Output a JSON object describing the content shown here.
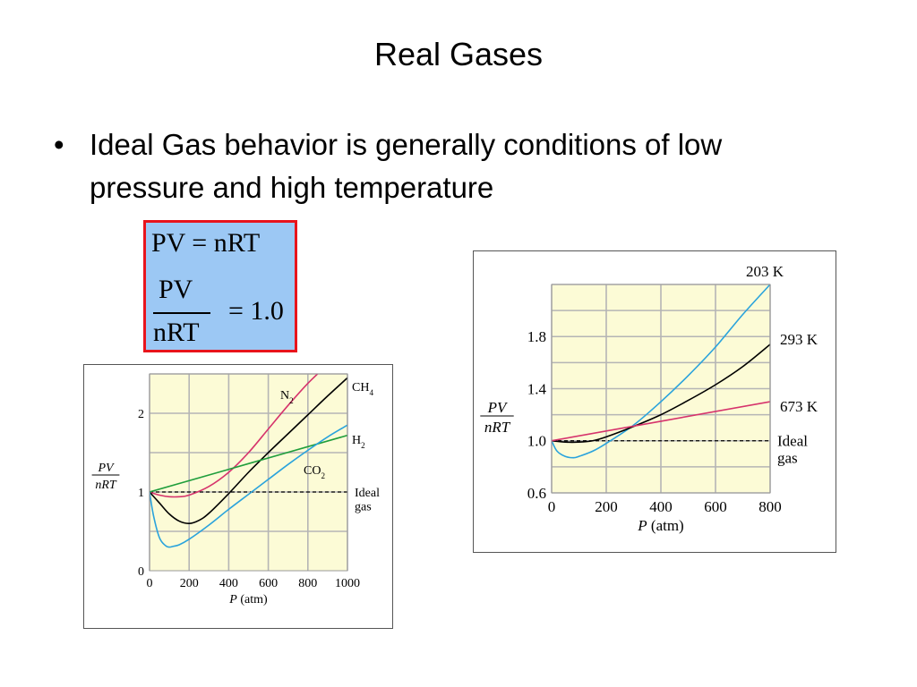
{
  "slide": {
    "title": "Real Gases",
    "bullet_symbol": "•",
    "bullet": "Ideal Gas behavior is generally conditions of low pressure and high temperature"
  },
  "equation_box": {
    "line1": "PV = nRT",
    "numerator": "PV",
    "denominator": "nRT",
    "rhs": "= 1.0",
    "border_color": "#e8141c",
    "background_color": "#9cc8f4"
  },
  "chart_data": [
    {
      "type": "line",
      "title": "",
      "xlabel": "P (atm)",
      "ylabel": "PV/nRT",
      "xlim": [
        0,
        1000
      ],
      "ylim": [
        0,
        2.5
      ],
      "xticks": [
        0,
        200,
        400,
        600,
        800,
        1000
      ],
      "yticks": [
        0,
        1.0,
        2.0
      ],
      "grid": true,
      "background_color": "#fcfbd6",
      "series": [
        {
          "name": "N2",
          "label": "N",
          "subscript": "2",
          "color": "#d6336c",
          "x": [
            0,
            50,
            100,
            150,
            200,
            300,
            400,
            500,
            600,
            700,
            800,
            900
          ],
          "y": [
            1.0,
            0.96,
            0.94,
            0.94,
            0.96,
            1.07,
            1.25,
            1.5,
            1.8,
            2.1,
            2.38,
            2.62
          ]
        },
        {
          "name": "CH4",
          "label": "CH",
          "subscript": "4",
          "color": "#000000",
          "x": [
            0,
            50,
            100,
            150,
            200,
            250,
            300,
            400,
            500,
            600,
            700,
            800,
            900,
            1000
          ],
          "y": [
            1.0,
            0.86,
            0.72,
            0.63,
            0.6,
            0.64,
            0.73,
            0.98,
            1.25,
            1.5,
            1.74,
            1.98,
            2.22,
            2.45
          ]
        },
        {
          "name": "H2",
          "label": "H",
          "subscript": "2",
          "color": "#1f9e3c",
          "x": [
            0,
            1000
          ],
          "y": [
            1.0,
            1.72
          ]
        },
        {
          "name": "CO2",
          "label": "CO",
          "subscript": "2",
          "color": "#2aa3dc",
          "x": [
            0,
            20,
            50,
            80,
            100,
            120,
            150,
            200,
            300,
            400,
            500,
            600,
            700,
            800,
            900,
            1000
          ],
          "y": [
            1.0,
            0.7,
            0.42,
            0.32,
            0.3,
            0.31,
            0.33,
            0.4,
            0.58,
            0.78,
            0.97,
            1.16,
            1.35,
            1.53,
            1.7,
            1.85
          ]
        }
      ],
      "reference_line": {
        "y": 1.0,
        "label_line1": "Ideal",
        "label_line2": "gas",
        "style": "dashed"
      }
    },
    {
      "type": "line",
      "title": "",
      "xlabel": "P (atm)",
      "ylabel": "PV/nRT",
      "xlim": [
        0,
        800
      ],
      "ylim": [
        0.6,
        2.2
      ],
      "xticks": [
        0,
        200,
        400,
        600,
        800
      ],
      "yticks": [
        0.6,
        1.0,
        1.4,
        1.8
      ],
      "grid": true,
      "background_color": "#fcfbd6",
      "series": [
        {
          "name": "203 K",
          "color": "#2aa3dc",
          "x": [
            0,
            20,
            50,
            80,
            100,
            150,
            200,
            300,
            400,
            500,
            600,
            700,
            800
          ],
          "y": [
            1.0,
            0.92,
            0.88,
            0.87,
            0.88,
            0.92,
            0.98,
            1.12,
            1.3,
            1.5,
            1.72,
            1.97,
            2.2
          ]
        },
        {
          "name": "293 K",
          "color": "#000000",
          "x": [
            0,
            50,
            100,
            150,
            200,
            300,
            400,
            500,
            600,
            700,
            800
          ],
          "y": [
            1.0,
            0.99,
            0.99,
            1.0,
            1.03,
            1.11,
            1.2,
            1.31,
            1.43,
            1.57,
            1.74
          ]
        },
        {
          "name": "673 K",
          "color": "#d6336c",
          "x": [
            0,
            800
          ],
          "y": [
            1.0,
            1.3
          ]
        }
      ],
      "reference_line": {
        "y": 1.0,
        "label_line1": "Ideal",
        "label_line2": "gas",
        "style": "dashed"
      }
    }
  ]
}
